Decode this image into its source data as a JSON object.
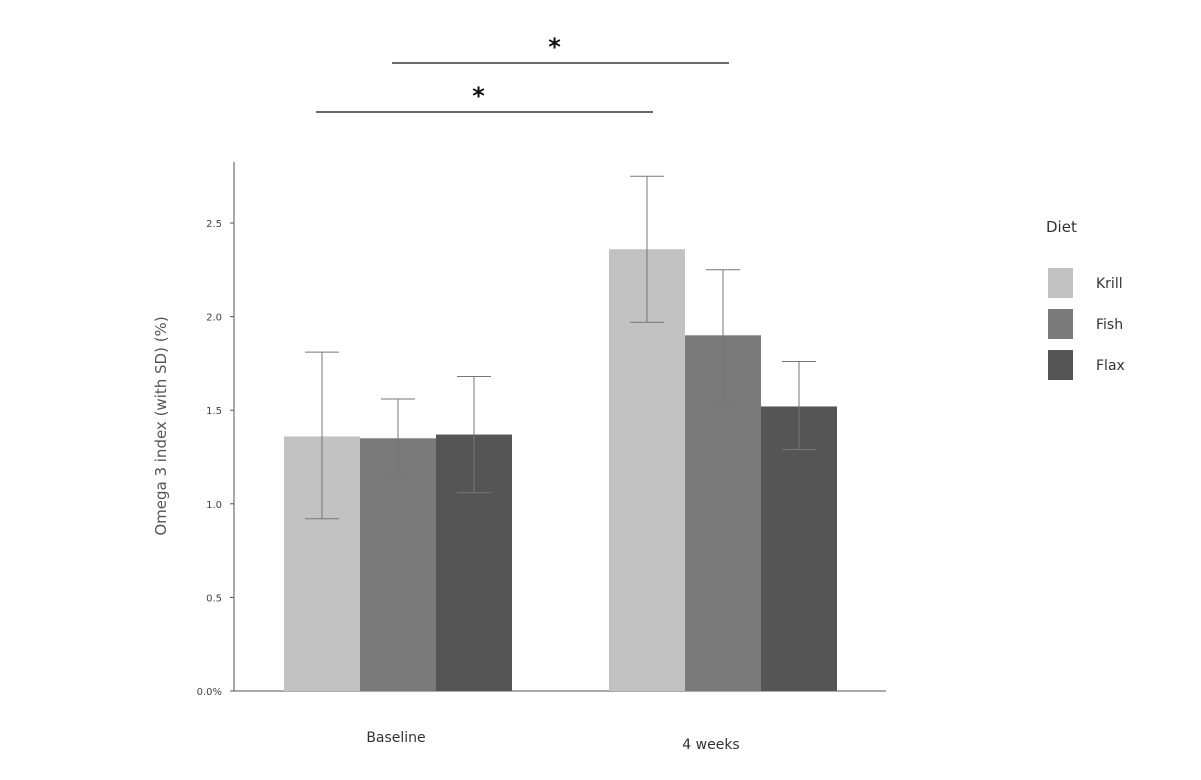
{
  "chart_data": {
    "type": "bar",
    "categories": [
      "Baseline",
      "4 weeks"
    ],
    "ylabel": "Omega 3 index (with SD) (%)",
    "xlabel": "",
    "ylim": [
      0,
      2.8
    ],
    "yticks": [
      {
        "value": 0,
        "label": "0.0%"
      },
      {
        "value": 0.5,
        "label": "0.5"
      },
      {
        "value": 1.0,
        "label": "1.0"
      },
      {
        "value": 1.5,
        "label": "1.5"
      },
      {
        "value": 2.0,
        "label": "2.0"
      },
      {
        "value": 2.5,
        "label": "2.5"
      }
    ],
    "grid": false,
    "legend": {
      "title": "Diet",
      "placement": "right"
    },
    "series": [
      {
        "name": "Krill",
        "color": "#c2c2c2",
        "values": [
          1.36,
          2.36
        ],
        "sd_low": [
          0.92,
          1.97
        ],
        "sd_high": [
          1.81,
          2.75
        ]
      },
      {
        "name": "Fish",
        "color": "#7a7a7a",
        "values": [
          1.35,
          1.9
        ],
        "sd_low": [
          1.13,
          1.54
        ],
        "sd_high": [
          1.56,
          2.25
        ]
      },
      {
        "name": "Flax",
        "color": "#555555",
        "values": [
          1.37,
          1.52
        ],
        "sd_low": [
          1.06,
          1.29
        ],
        "sd_high": [
          1.68,
          1.76
        ]
      }
    ],
    "annotations": [
      {
        "text": "*",
        "from": {
          "category": "Baseline",
          "series": "Fish"
        },
        "to": {
          "category": "4 weeks",
          "series": "Fish"
        }
      },
      {
        "text": "*",
        "from": {
          "category": "Baseline",
          "series": "Krill"
        },
        "to": {
          "category": "4 weeks",
          "series": "Krill"
        }
      }
    ]
  }
}
